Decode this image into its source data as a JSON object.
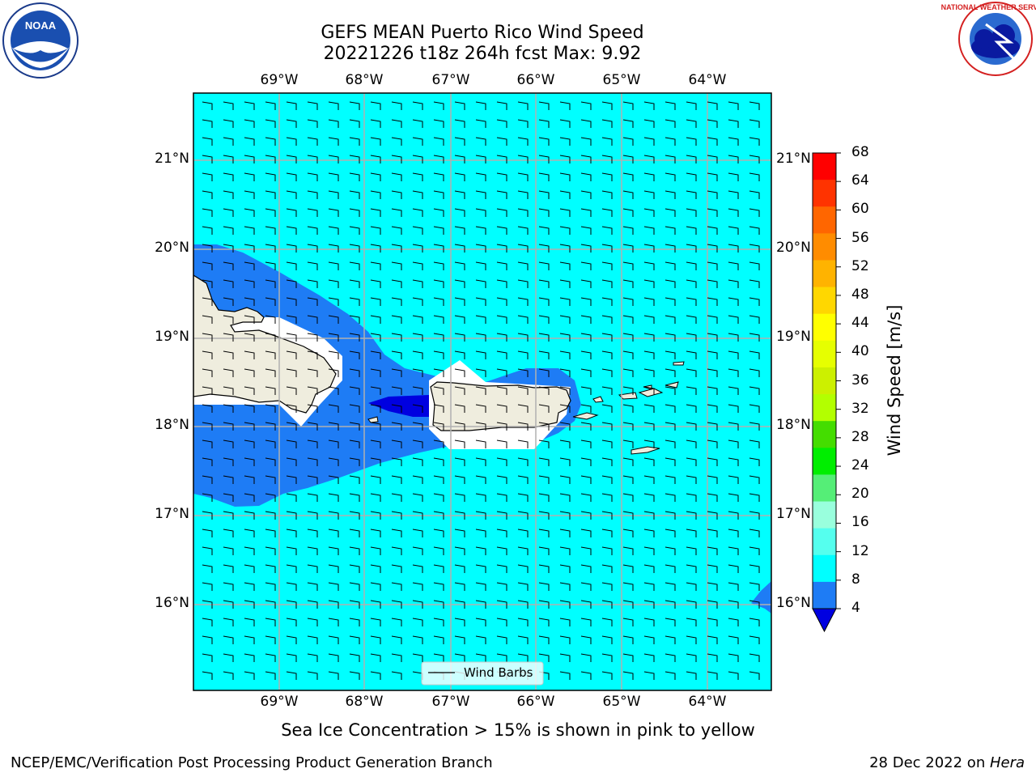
{
  "title": {
    "line1": "GEFS MEAN Puerto Rico Wind Speed",
    "line2": "20221226 t18z 264h fcst   Max: 9.92"
  },
  "map": {
    "lon_labels": [
      "69°W",
      "68°W",
      "67°W",
      "66°W",
      "65°W",
      "64°W"
    ],
    "lat_labels": [
      "21°N",
      "20°N",
      "19°N",
      "18°N",
      "17°N",
      "16°N"
    ],
    "legend_label": "Wind Barbs",
    "colors": {
      "ocean_wind_8_12": "#00ffff",
      "wind_4_8": "#1e7cf5",
      "wind_below_4": "#0000e0",
      "land": "#efedde",
      "grid": "#b0b0b0"
    }
  },
  "colorbar": {
    "label": "Wind Speed [m/s]",
    "ticks": [
      "68",
      "64",
      "60",
      "56",
      "52",
      "48",
      "44",
      "40",
      "36",
      "32",
      "28",
      "24",
      "20",
      "16",
      "12",
      "8",
      "4"
    ],
    "colors_top_to_bottom": [
      "#ff0000",
      "#ff3300",
      "#ff6600",
      "#ff8c00",
      "#ffb300",
      "#ffd700",
      "#ffff00",
      "#e6ff00",
      "#ccf000",
      "#b3ff00",
      "#44dd00",
      "#00ee00",
      "#55ee77",
      "#99ffdd",
      "#55ffee",
      "#00ffff",
      "#1e7cf5"
    ],
    "extend_color": "#0000e0"
  },
  "logos": {
    "noaa_text": "NOAA",
    "nws_text": "NATIONAL WEATHER SERVICE"
  },
  "footer": {
    "note": "Sea Ice Concentration > 15% is shown in pink to yellow",
    "branch": "NCEP/EMC/Verification Post Processing Product Generation Branch",
    "date": "28 Dec 2022 on ",
    "machine": "Hera"
  }
}
